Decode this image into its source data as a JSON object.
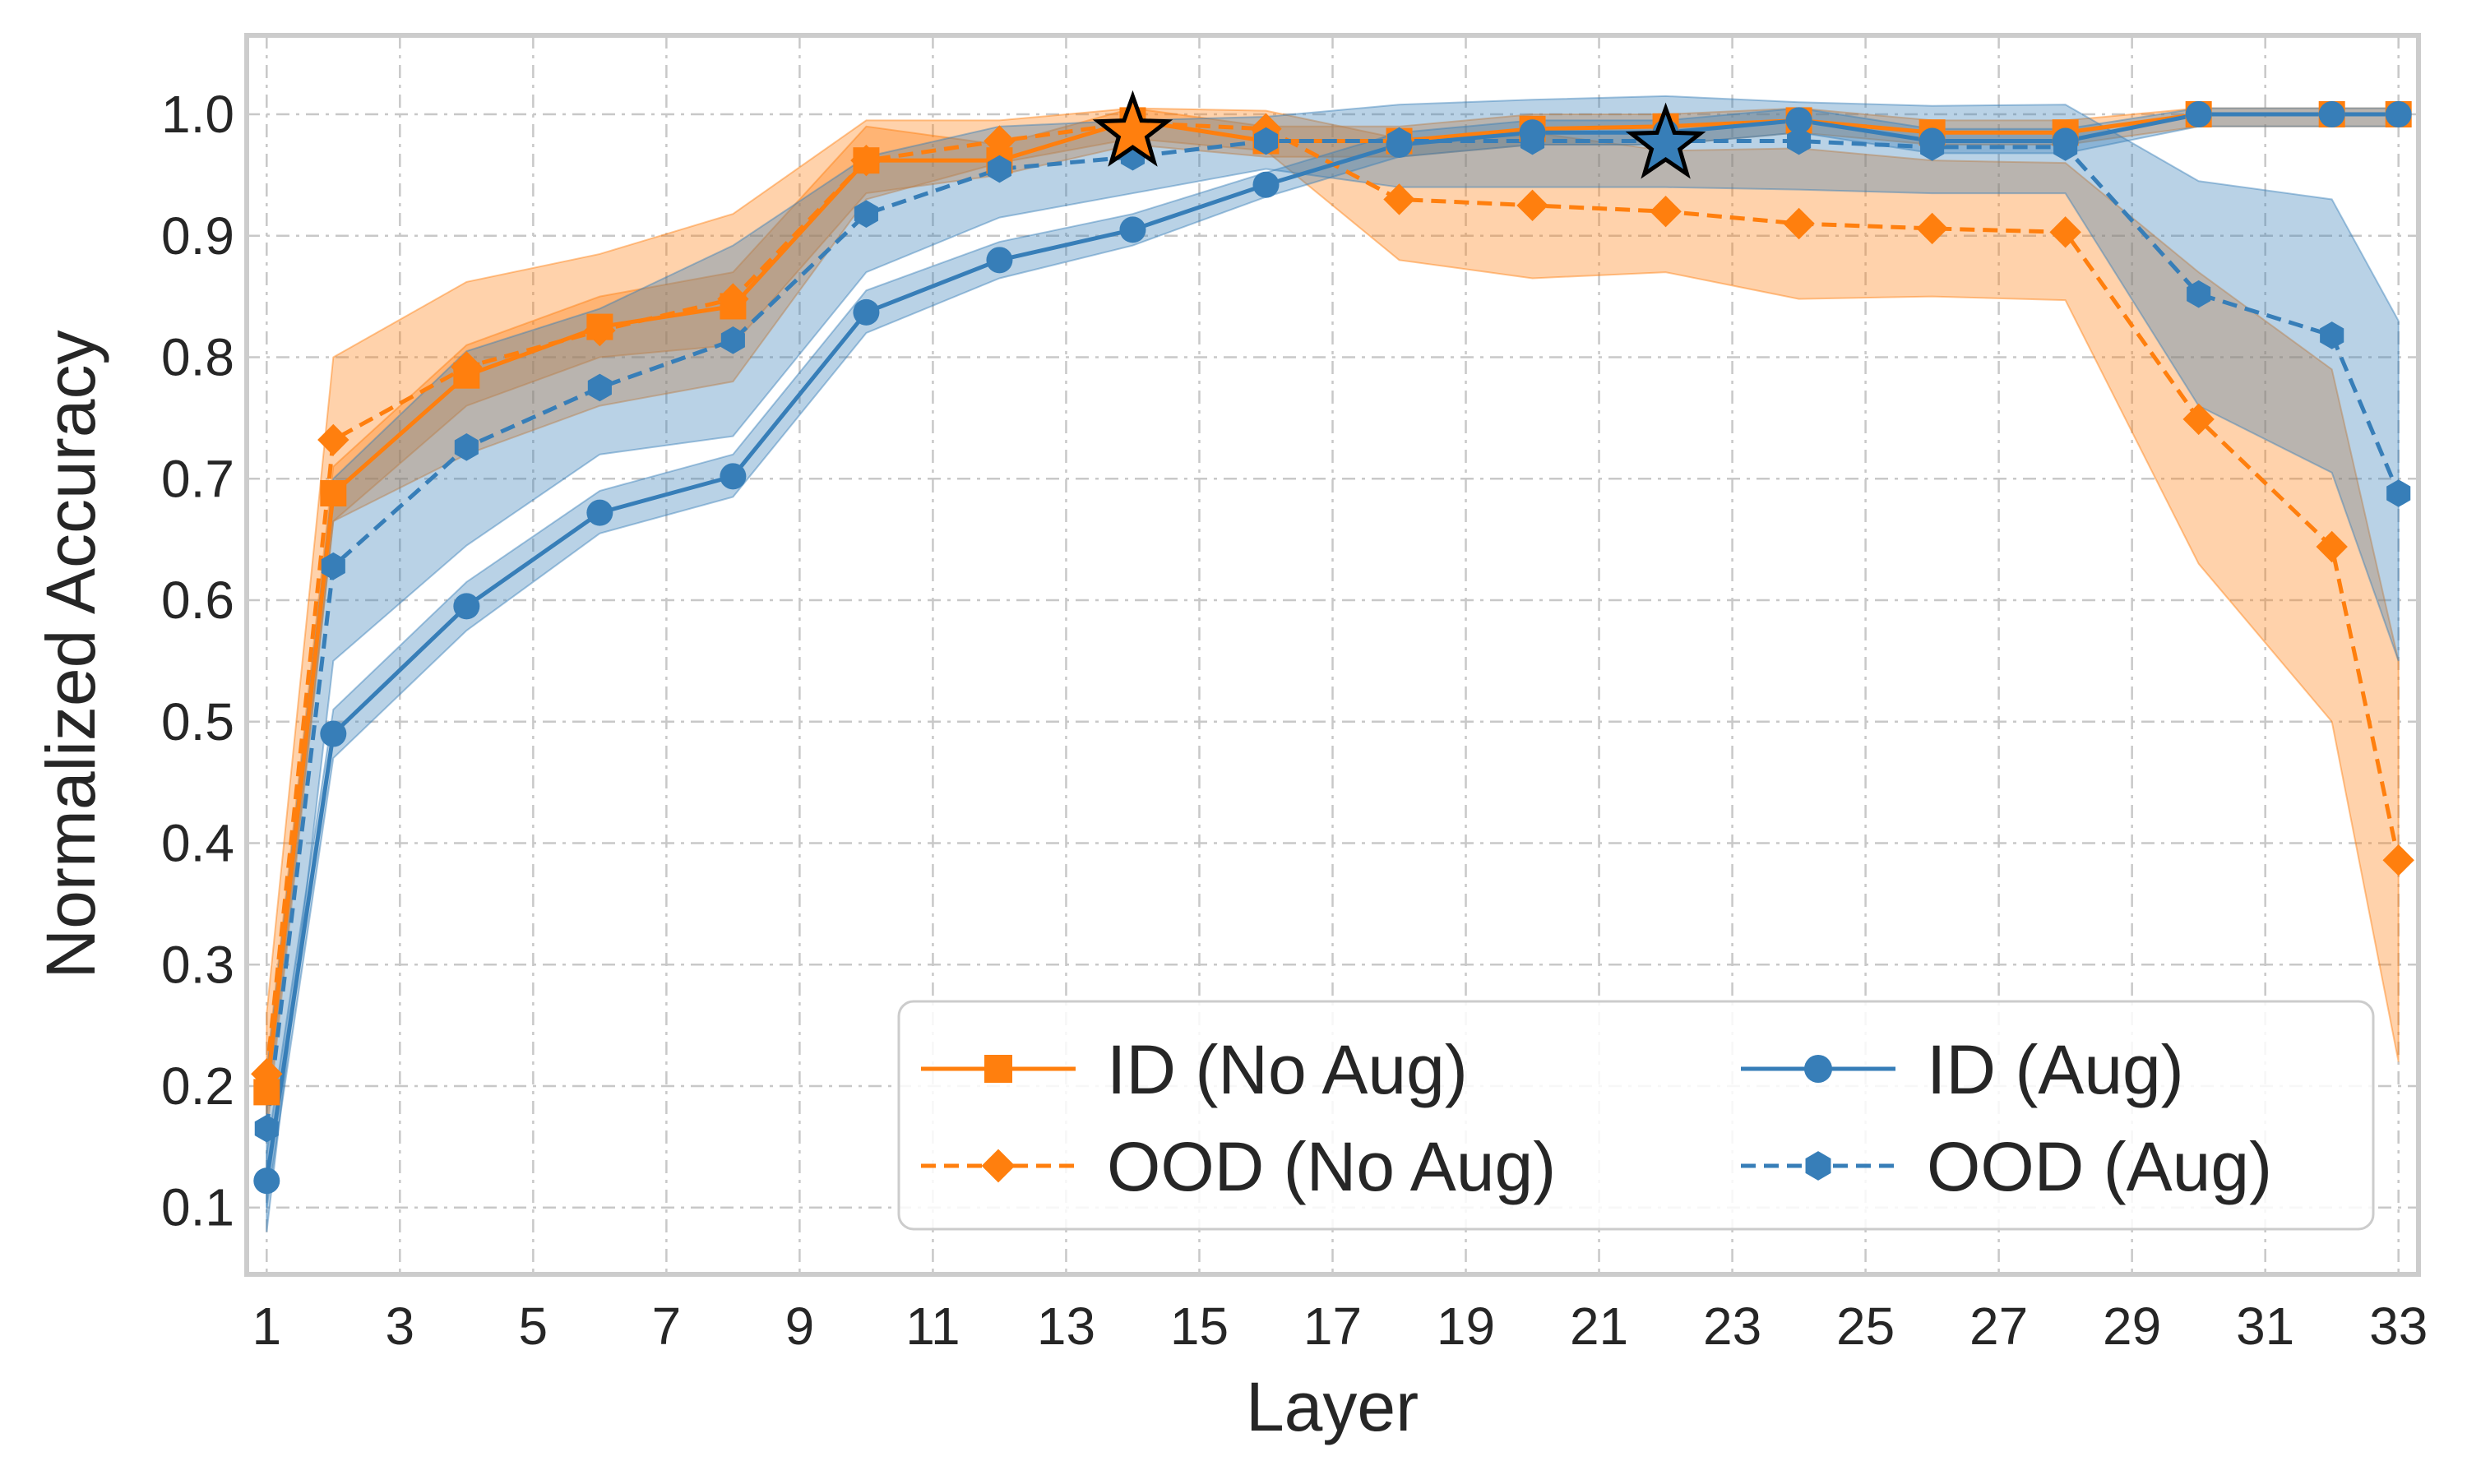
{
  "chart_data": {
    "type": "line",
    "title": "",
    "xlabel": "Layer",
    "ylabel": "Normalized  Accuracy",
    "xlim": [
      0.7,
      33.3
    ],
    "ylim": [
      0.045,
      1.065
    ],
    "x_ticks": [
      1,
      3,
      5,
      7,
      9,
      11,
      13,
      15,
      17,
      19,
      21,
      23,
      25,
      27,
      29,
      31,
      33
    ],
    "y_ticks": [
      0.1,
      0.2,
      0.3,
      0.4,
      0.5,
      0.6,
      0.7,
      0.8,
      0.9,
      1.0
    ],
    "y_tick_labels": [
      "0.1",
      "0.2",
      "0.3",
      "0.4",
      "0.5",
      "0.6",
      "0.7",
      "0.8",
      "0.9",
      "1.0"
    ],
    "grid": true,
    "legend_position": "lower-right",
    "x": [
      1,
      2,
      4,
      6,
      8,
      10,
      12,
      14,
      16,
      18,
      20,
      22,
      24,
      26,
      28,
      30,
      32,
      33
    ],
    "series": [
      {
        "name": "ID (No Aug)",
        "color": "#ff7f0e",
        "line_style": "solid",
        "marker": "square",
        "values": [
          0.195,
          0.688,
          0.785,
          0.825,
          0.842,
          0.962,
          0.962,
          0.995,
          0.978,
          0.978,
          0.988,
          0.99,
          0.995,
          0.985,
          0.985,
          1.0,
          1.0,
          1.0
        ],
        "band_lower": [
          0.175,
          0.665,
          0.76,
          0.8,
          0.81,
          0.935,
          0.95,
          0.975,
          0.965,
          0.965,
          0.975,
          0.975,
          0.985,
          0.975,
          0.975,
          0.99,
          0.99,
          0.99
        ],
        "band_upper": [
          0.215,
          0.71,
          0.81,
          0.85,
          0.87,
          0.99,
          0.975,
          1.005,
          0.99,
          0.99,
          1.0,
          1.0,
          1.005,
          0.995,
          0.995,
          1.005,
          1.005,
          1.005
        ]
      },
      {
        "name": "OOD (No Aug)",
        "color": "#ff7f0e",
        "line_style": "dashed",
        "marker": "diamond",
        "values": [
          0.21,
          0.732,
          0.792,
          0.822,
          0.848,
          0.962,
          0.978,
          0.993,
          0.988,
          0.93,
          0.925,
          0.92,
          0.91,
          0.906,
          0.903,
          0.749,
          0.644,
          0.386
        ],
        "band_lower": [
          0.16,
          0.665,
          0.72,
          0.76,
          0.78,
          0.93,
          0.96,
          0.98,
          0.97,
          0.88,
          0.865,
          0.87,
          0.848,
          0.85,
          0.847,
          0.63,
          0.5,
          0.22
        ],
        "band_upper": [
          0.26,
          0.8,
          0.862,
          0.885,
          0.918,
          0.995,
          0.995,
          1.005,
          1.003,
          0.98,
          0.985,
          0.97,
          0.972,
          0.962,
          0.96,
          0.87,
          0.79,
          0.55
        ]
      },
      {
        "name": "ID (Aug)",
        "color": "#377eb8",
        "line_style": "solid",
        "marker": "circle",
        "values": [
          0.122,
          0.49,
          0.595,
          0.672,
          0.702,
          0.837,
          0.88,
          0.905,
          0.942,
          0.975,
          0.985,
          0.985,
          0.995,
          0.978,
          0.978,
          1.0,
          1.0,
          1.0
        ],
        "band_lower": [
          0.1,
          0.47,
          0.575,
          0.655,
          0.685,
          0.82,
          0.865,
          0.892,
          0.932,
          0.965,
          0.975,
          0.975,
          0.985,
          0.968,
          0.968,
          0.99,
          0.99,
          0.99
        ],
        "band_upper": [
          0.145,
          0.51,
          0.615,
          0.69,
          0.72,
          0.855,
          0.895,
          0.918,
          0.952,
          0.985,
          0.995,
          0.995,
          1.005,
          0.988,
          0.988,
          1.005,
          1.005,
          1.005
        ]
      },
      {
        "name": "OOD (Aug)",
        "color": "#377eb8",
        "line_style": "dashed",
        "marker": "hexagon",
        "values": [
          0.165,
          0.628,
          0.726,
          0.775,
          0.814,
          0.918,
          0.955,
          0.965,
          0.978,
          0.978,
          0.978,
          0.978,
          0.978,
          0.973,
          0.973,
          0.852,
          0.818,
          0.688
        ],
        "band_lower": [
          0.08,
          0.55,
          0.645,
          0.72,
          0.735,
          0.87,
          0.915,
          0.935,
          0.955,
          0.94,
          0.94,
          0.94,
          0.938,
          0.935,
          0.935,
          0.76,
          0.705,
          0.55
        ],
        "band_upper": [
          0.21,
          0.7,
          0.805,
          0.84,
          0.892,
          0.965,
          0.99,
          0.995,
          0.998,
          1.008,
          1.012,
          1.015,
          1.01,
          1.007,
          1.008,
          0.945,
          0.93,
          0.83
        ]
      }
    ],
    "annotations": [
      {
        "type": "star-marker",
        "color": "#ff7f0e",
        "x": 14,
        "y": 0.985,
        "note": "best layer ID (No Aug)"
      },
      {
        "type": "star-marker",
        "color": "#377eb8",
        "x": 22,
        "y": 0.975,
        "note": "best layer ID (Aug)"
      }
    ]
  }
}
